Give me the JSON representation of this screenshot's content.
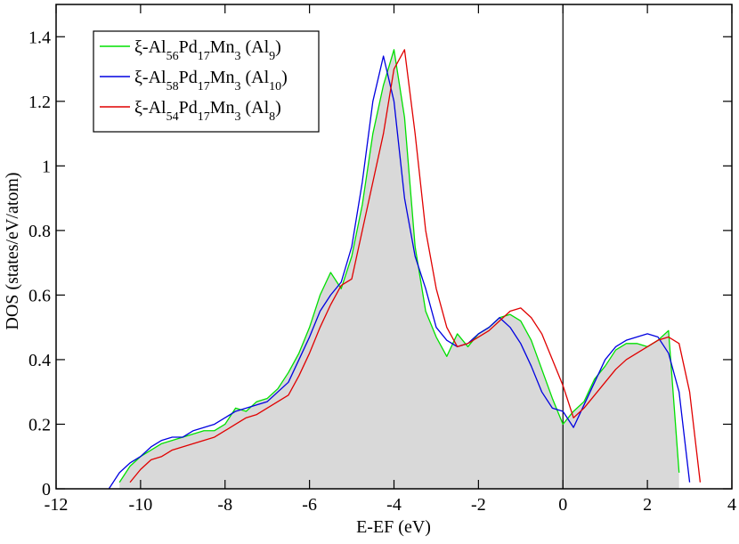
{
  "chart_data": {
    "type": "line",
    "xlabel": "E-EF (eV)",
    "ylabel": "DOS  (states/eV/atom)",
    "xlim": [
      -12,
      4
    ],
    "xticks": [
      -12,
      -10,
      -8,
      -6,
      -4,
      -2,
      0,
      2,
      4
    ],
    "ylim": [
      0,
      1.5
    ],
    "yticks": [
      0,
      0.2,
      0.4,
      0.6,
      0.8,
      1,
      1.2,
      1.4
    ],
    "vline": 0,
    "legend": "upper left",
    "x": [
      -10.75,
      -10.5,
      -10.25,
      -10,
      -9.75,
      -9.5,
      -9.25,
      -9,
      -8.75,
      -8.5,
      -8.25,
      -8,
      -7.75,
      -7.5,
      -7.25,
      -7,
      -6.75,
      -6.5,
      -6.25,
      -6,
      -5.75,
      -5.5,
      -5.25,
      -5,
      -4.75,
      -4.5,
      -4.25,
      -4,
      -3.75,
      -3.5,
      -3.25,
      -3,
      -2.75,
      -2.5,
      -2.25,
      -2,
      -1.75,
      -1.5,
      -1.25,
      -1,
      -0.75,
      -0.5,
      -0.25,
      0,
      0.25,
      0.5,
      0.75,
      1,
      1.25,
      1.5,
      1.75,
      2,
      2.25,
      2.5,
      2.75,
      3,
      3.25
    ],
    "series": [
      {
        "name": "ξ-Al56Pd17Mn3 (Al9)",
        "color": "#00e000",
        "fill": "#d9d9d9",
        "values": [
          null,
          0.02,
          0.07,
          0.1,
          0.12,
          0.14,
          0.15,
          0.16,
          0.17,
          0.18,
          0.18,
          0.2,
          0.25,
          0.24,
          0.27,
          0.28,
          0.31,
          0.36,
          0.42,
          0.5,
          0.6,
          0.67,
          0.62,
          0.72,
          0.88,
          1.1,
          1.25,
          1.36,
          1.15,
          0.75,
          0.55,
          0.47,
          0.41,
          0.48,
          0.44,
          0.48,
          0.5,
          0.53,
          0.54,
          0.52,
          0.46,
          0.37,
          0.28,
          0.2,
          0.24,
          0.27,
          0.34,
          0.38,
          0.43,
          0.45,
          0.45,
          0.44,
          0.46,
          0.49,
          0.05,
          null,
          null
        ]
      },
      {
        "name": "ξ-Al58Pd17Mn3 (Al10)",
        "color": "#0000e0",
        "values": [
          0,
          0.05,
          0.08,
          0.1,
          0.13,
          0.15,
          0.16,
          0.16,
          0.18,
          0.19,
          0.2,
          0.22,
          0.24,
          0.25,
          0.26,
          0.27,
          0.3,
          0.33,
          0.4,
          0.47,
          0.55,
          0.6,
          0.64,
          0.75,
          0.95,
          1.2,
          1.34,
          1.2,
          0.9,
          0.72,
          0.62,
          0.5,
          0.46,
          0.44,
          0.45,
          0.48,
          0.5,
          0.53,
          0.5,
          0.45,
          0.38,
          0.3,
          0.25,
          0.24,
          0.19,
          0.26,
          0.33,
          0.4,
          0.44,
          0.46,
          0.47,
          0.48,
          0.47,
          0.42,
          0.3,
          0.02,
          null
        ]
      },
      {
        "name": "ξ-Al54Pd17Mn3 (Al8)",
        "color": "#e00000",
        "values": [
          null,
          null,
          0.02,
          0.06,
          0.09,
          0.1,
          0.12,
          0.13,
          0.14,
          0.15,
          0.16,
          0.18,
          0.2,
          0.22,
          0.23,
          0.25,
          0.27,
          0.29,
          0.35,
          0.42,
          0.5,
          0.57,
          0.63,
          0.65,
          0.8,
          0.95,
          1.1,
          1.3,
          1.36,
          1.1,
          0.8,
          0.62,
          0.5,
          0.44,
          0.45,
          0.47,
          0.49,
          0.52,
          0.55,
          0.56,
          0.53,
          0.48,
          0.4,
          0.32,
          0.22,
          0.25,
          0.29,
          0.33,
          0.37,
          0.4,
          0.42,
          0.44,
          0.46,
          0.47,
          0.45,
          0.3,
          0.02
        ]
      }
    ]
  }
}
